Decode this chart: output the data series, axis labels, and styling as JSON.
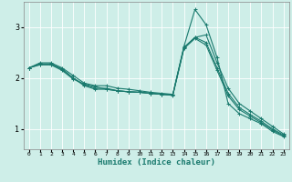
{
  "xlabel": "Humidex (Indice chaleur)",
  "ylabel": "",
  "bg_color": "#ceeee8",
  "line_color": "#1a7a6e",
  "grid_color": "#ffffff",
  "x_ticks": [
    0,
    1,
    2,
    3,
    4,
    5,
    6,
    7,
    8,
    9,
    10,
    11,
    12,
    13,
    14,
    15,
    16,
    17,
    18,
    19,
    20,
    21,
    22,
    23
  ],
  "y_ticks": [
    1,
    2,
    3
  ],
  "xlim": [
    -0.5,
    23.5
  ],
  "ylim": [
    0.6,
    3.5
  ],
  "lines": [
    {
      "x": [
        0,
        1,
        2,
        3,
        4,
        5,
        6,
        7,
        8,
        9,
        10,
        11,
        12,
        13,
        14,
        15,
        16,
        17,
        18,
        19,
        20,
        21,
        22,
        23
      ],
      "y": [
        2.2,
        2.3,
        2.3,
        2.2,
        2.05,
        1.9,
        1.85,
        1.85,
        1.8,
        1.78,
        1.75,
        1.72,
        1.7,
        1.68,
        2.62,
        3.35,
        3.05,
        2.4,
        1.5,
        1.3,
        1.2,
        1.1,
        0.95,
        0.85
      ]
    },
    {
      "x": [
        0,
        1,
        2,
        3,
        4,
        5,
        6,
        7,
        8,
        9,
        10,
        11,
        12,
        13,
        14,
        15,
        16,
        17,
        18,
        19,
        20,
        21,
        22,
        23
      ],
      "y": [
        2.2,
        2.28,
        2.28,
        2.18,
        2.0,
        1.85,
        1.78,
        1.78,
        1.75,
        1.73,
        1.72,
        1.7,
        1.68,
        1.67,
        2.6,
        2.8,
        2.85,
        2.3,
        1.8,
        1.5,
        1.35,
        1.2,
        1.05,
        0.9
      ]
    },
    {
      "x": [
        0,
        1,
        2,
        3,
        4,
        5,
        6,
        7,
        8,
        9,
        10,
        11,
        12,
        13,
        14,
        15,
        16,
        17,
        18,
        19,
        20,
        21,
        22,
        23
      ],
      "y": [
        2.2,
        2.27,
        2.27,
        2.17,
        2.0,
        1.87,
        1.8,
        1.8,
        1.75,
        1.73,
        1.72,
        1.7,
        1.68,
        1.67,
        2.6,
        2.8,
        2.7,
        2.2,
        1.7,
        1.42,
        1.28,
        1.15,
        1.0,
        0.88
      ]
    },
    {
      "x": [
        0,
        1,
        2,
        3,
        4,
        5,
        6,
        7,
        8,
        9,
        10,
        11,
        12,
        13,
        14,
        15,
        16,
        17,
        18,
        19,
        20,
        21,
        22,
        23
      ],
      "y": [
        2.2,
        2.26,
        2.26,
        2.15,
        1.98,
        1.88,
        1.83,
        1.78,
        1.75,
        1.73,
        1.72,
        1.7,
        1.68,
        1.66,
        2.58,
        2.78,
        2.65,
        2.15,
        1.65,
        1.38,
        1.25,
        1.12,
        0.98,
        0.86
      ]
    }
  ]
}
